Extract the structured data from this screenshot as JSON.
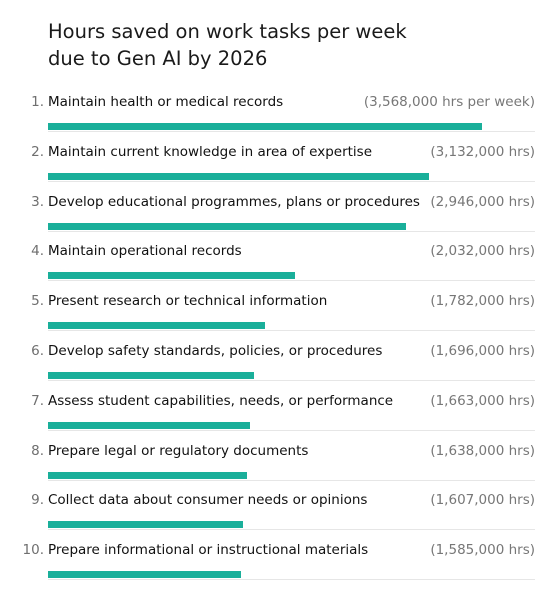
{
  "title_line1": "Hours saved on work tasks per week",
  "title_line2": "due to Gen AI by 2026",
  "bar_color": "#1aaf9a",
  "chart_data": {
    "type": "bar",
    "orientation": "horizontal",
    "title": "Hours saved on work tasks per week due to Gen AI by 2026",
    "xlabel": "",
    "ylabel": "",
    "grid": false,
    "legend": "none",
    "categories": [
      "Maintain health or medical records",
      "Maintain current knowledge in area of expertise",
      "Develop educational programmes, plans or procedures",
      "Maintain operational records",
      "Present research or technical information",
      "Develop safety standards, policies, or procedures",
      "Assess student capabilities, needs, or performance",
      "Prepare legal or regulatory documents",
      "Collect data about consumer needs or opinions",
      "Prepare informational or instructional materials"
    ],
    "values": [
      3568000,
      3132000,
      2946000,
      2032000,
      1782000,
      1696000,
      1663000,
      1638000,
      1607000,
      1585000
    ],
    "value_labels": [
      "(3,568,000 hrs per week)",
      "(3,132,000 hrs)",
      "(2,946,000 hrs)",
      "(2,032,000 hrs)",
      "(1,782,000 hrs)",
      "(1,696,000 hrs)",
      "(1,663,000 hrs)",
      "(1,638,000 hrs)",
      "(1,607,000 hrs)",
      "(1,585,000 hrs)"
    ],
    "ranks": [
      "1.",
      "2.",
      "3.",
      "4.",
      "5.",
      "6.",
      "7.",
      "8.",
      "9.",
      "10."
    ]
  }
}
